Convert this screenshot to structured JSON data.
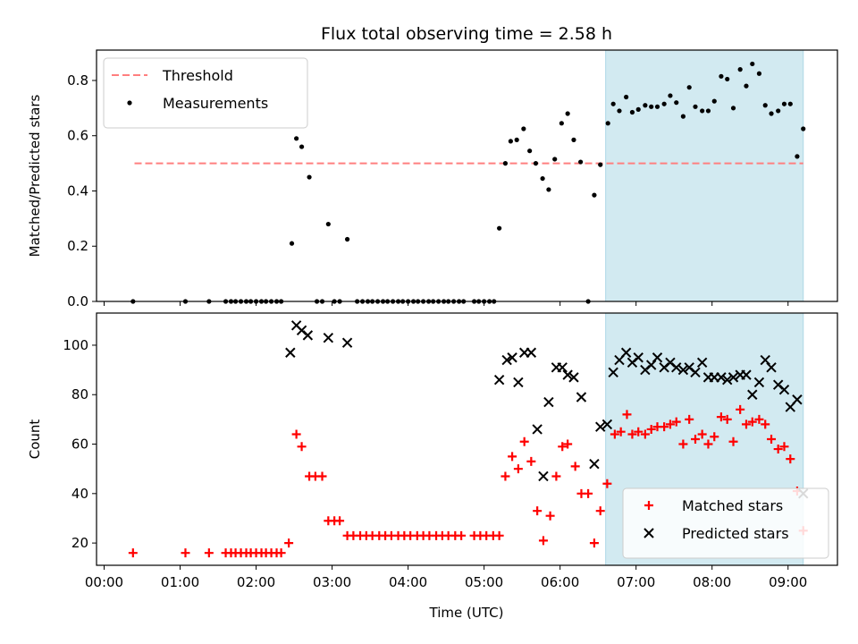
{
  "chart_data": {
    "title": "Flux total observing time = 2.58 h",
    "shared_x": {
      "label": "Time (UTC)",
      "unit": "hours UTC",
      "range": [
        -0.1,
        9.65
      ],
      "ticks": [
        0,
        1,
        2,
        3,
        4,
        5,
        6,
        7,
        8,
        9
      ],
      "tick_labels": [
        "00:00",
        "01:00",
        "02:00",
        "03:00",
        "04:00",
        "05:00",
        "06:00",
        "07:00",
        "08:00",
        "09:00"
      ]
    },
    "highlight_span": {
      "x_start": 6.6,
      "x_end": 9.2,
      "color": "#add8e6"
    },
    "panels": [
      {
        "type": "scatter",
        "ylabel": "Matched/Predicted stars",
        "ylim": [
          0,
          0.91
        ],
        "yticks": [
          0.0,
          0.2,
          0.4,
          0.6,
          0.8
        ],
        "ytick_labels": [
          "0.0",
          "0.2",
          "0.4",
          "0.6",
          "0.8"
        ],
        "legend_position": "top-left",
        "threshold": {
          "name": "Threshold",
          "value": 0.5,
          "x_start": 0.4,
          "x_end": 9.2,
          "color": "#ff7f7f"
        },
        "series": [
          {
            "name": "Measurements",
            "color": "#000000",
            "marker": "dot",
            "x": [
              0.38,
              1.07,
              1.38,
              1.6,
              1.67,
              1.73,
              1.8,
              1.87,
              1.93,
              2.0,
              2.07,
              2.13,
              2.2,
              2.27,
              2.33,
              2.47,
              2.53,
              2.6,
              2.7,
              2.8,
              2.87,
              2.95,
              3.03,
              3.1,
              3.2,
              3.33,
              3.4,
              3.47,
              3.53,
              3.6,
              3.67,
              3.73,
              3.8,
              3.87,
              3.93,
              4.0,
              4.07,
              4.13,
              4.2,
              4.27,
              4.33,
              4.4,
              4.47,
              4.53,
              4.6,
              4.67,
              4.73,
              4.87,
              4.93,
              5.0,
              5.07,
              5.13,
              5.2,
              5.28,
              5.35,
              5.43,
              5.52,
              5.6,
              5.68,
              5.77,
              5.85,
              5.93,
              6.02,
              6.1,
              6.18,
              6.27,
              6.37,
              6.45,
              6.53,
              6.63,
              6.7,
              6.78,
              6.87,
              6.95,
              7.03,
              7.12,
              7.2,
              7.28,
              7.37,
              7.45,
              7.53,
              7.62,
              7.7,
              7.78,
              7.87,
              7.95,
              8.03,
              8.12,
              8.2,
              8.28,
              8.37,
              8.45,
              8.53,
              8.62,
              8.7,
              8.78,
              8.87,
              8.95,
              9.03,
              9.12,
              9.2
            ],
            "y": [
              0.0,
              0.0,
              0.0,
              0.0,
              0.0,
              0.0,
              0.0,
              0.0,
              0.0,
              0.0,
              0.0,
              0.0,
              0.0,
              0.0,
              0.0,
              0.21,
              0.59,
              0.56,
              0.45,
              0.0,
              0.0,
              0.28,
              0.0,
              0.0,
              0.225,
              0.0,
              0.0,
              0.0,
              0.0,
              0.0,
              0.0,
              0.0,
              0.0,
              0.0,
              0.0,
              0.0,
              0.0,
              0.0,
              0.0,
              0.0,
              0.0,
              0.0,
              0.0,
              0.0,
              0.0,
              0.0,
              0.0,
              0.0,
              0.0,
              0.0,
              0.0,
              0.0,
              0.265,
              0.5,
              0.58,
              0.585,
              0.625,
              0.545,
              0.5,
              0.445,
              0.405,
              0.515,
              0.645,
              0.68,
              0.585,
              0.505,
              0.0,
              0.385,
              0.495,
              0.645,
              0.715,
              0.69,
              0.74,
              0.685,
              0.695,
              0.71,
              0.705,
              0.705,
              0.715,
              0.745,
              0.72,
              0.67,
              0.775,
              0.705,
              0.69,
              0.69,
              0.725,
              0.815,
              0.805,
              0.7,
              0.84,
              0.78,
              0.86,
              0.825,
              0.71,
              0.68,
              0.69,
              0.715,
              0.715,
              0.525,
              0.625
            ]
          }
        ]
      },
      {
        "type": "scatter",
        "ylabel": "Count",
        "ylim": [
          11,
          113
        ],
        "yticks": [
          20,
          40,
          60,
          80,
          100
        ],
        "ytick_labels": [
          "20",
          "40",
          "60",
          "80",
          "100"
        ],
        "legend_position": "bottom-right",
        "series": [
          {
            "name": "Matched stars",
            "color": "#ff0000",
            "marker": "plus",
            "x": [
              0.38,
              1.07,
              1.38,
              1.6,
              1.67,
              1.73,
              1.8,
              1.87,
              1.93,
              2.0,
              2.07,
              2.13,
              2.2,
              2.27,
              2.33,
              2.43,
              2.53,
              2.6,
              2.7,
              2.78,
              2.87,
              2.95,
              3.03,
              3.1,
              3.2,
              3.28,
              3.37,
              3.45,
              3.53,
              3.62,
              3.7,
              3.78,
              3.87,
              3.95,
              4.03,
              4.12,
              4.2,
              4.28,
              4.37,
              4.45,
              4.53,
              4.62,
              4.7,
              4.87,
              4.95,
              5.03,
              5.12,
              5.2,
              5.28,
              5.37,
              5.45,
              5.53,
              5.62,
              5.7,
              5.78,
              5.87,
              5.95,
              6.03,
              6.1,
              6.2,
              6.28,
              6.37,
              6.45,
              6.53,
              6.62,
              6.72,
              6.8,
              6.88,
              6.95,
              7.03,
              7.12,
              7.2,
              7.28,
              7.37,
              7.45,
              7.53,
              7.62,
              7.7,
              7.78,
              7.87,
              7.95,
              8.03,
              8.12,
              8.2,
              8.28,
              8.37,
              8.45,
              8.53,
              8.62,
              8.7,
              8.78,
              8.87,
              8.95,
              9.03,
              9.12,
              9.2
            ],
            "y": [
              16,
              16,
              16,
              16,
              16,
              16,
              16,
              16,
              16,
              16,
              16,
              16,
              16,
              16,
              16,
              20,
              64,
              59,
              47,
              47,
              47,
              29,
              29,
              29,
              23,
              23,
              23,
              23,
              23,
              23,
              23,
              23,
              23,
              23,
              23,
              23,
              23,
              23,
              23,
              23,
              23,
              23,
              23,
              23,
              23,
              23,
              23,
              23,
              47,
              55,
              50,
              61,
              53,
              33,
              21,
              31,
              47,
              59,
              60,
              51,
              40,
              40,
              20,
              33,
              44,
              64,
              65,
              72,
              64,
              65,
              64,
              66,
              67,
              67,
              68,
              69,
              60,
              70,
              62,
              64,
              60,
              63,
              71,
              70,
              61,
              74,
              68,
              69,
              70,
              68,
              62,
              58,
              59,
              54,
              41,
              25
            ]
          },
          {
            "name": "Predicted stars",
            "color": "#000000",
            "marker": "x",
            "x": [
              2.45,
              2.53,
              2.6,
              2.68,
              2.95,
              3.2,
              5.2,
              5.3,
              5.37,
              5.45,
              5.53,
              5.62,
              5.7,
              5.78,
              5.85,
              5.95,
              6.03,
              6.1,
              6.18,
              6.28,
              6.45,
              6.53,
              6.62,
              6.7,
              6.78,
              6.87,
              6.95,
              7.03,
              7.12,
              7.2,
              7.28,
              7.37,
              7.45,
              7.53,
              7.62,
              7.7,
              7.78,
              7.87,
              7.95,
              8.03,
              8.12,
              8.2,
              8.28,
              8.37,
              8.45,
              8.53,
              8.62,
              8.7,
              8.78,
              8.87,
              8.95,
              9.03,
              9.12,
              9.2
            ],
            "y": [
              97,
              108,
              106,
              104,
              103,
              101,
              86,
              94,
              95,
              85,
              97,
              97,
              66,
              47,
              77,
              91,
              91,
              88,
              87,
              79,
              52,
              67,
              68,
              89,
              94,
              97,
              93,
              95,
              90,
              92,
              95,
              91,
              93,
              91,
              90,
              91,
              89,
              93,
              87,
              87,
              87,
              86,
              87,
              88,
              88,
              80,
              85,
              94,
              91,
              84,
              82,
              75,
              78,
              40
            ]
          }
        ]
      }
    ]
  }
}
